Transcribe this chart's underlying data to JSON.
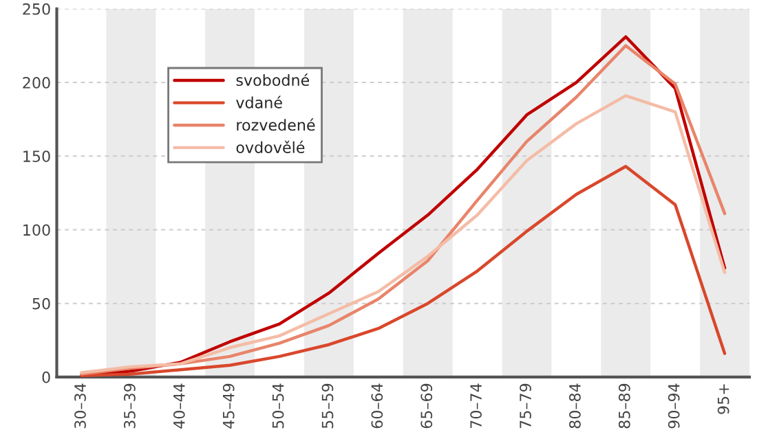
{
  "chart_data": {
    "type": "line",
    "categories": [
      "30–34",
      "35–39",
      "40–44",
      "45–49",
      "50–54",
      "55–59",
      "60–64",
      "65–69",
      "70–74",
      "75–79",
      "80–84",
      "85–89",
      "90–94",
      "95+"
    ],
    "series": [
      {
        "name": "svobodné",
        "color": "#c00000",
        "values": [
          1,
          4,
          10,
          24,
          36,
          57,
          84,
          110,
          141,
          178,
          200,
          231,
          196,
          74
        ]
      },
      {
        "name": "vdané",
        "color": "#d9472b",
        "values": [
          1,
          2,
          5,
          8,
          14,
          22,
          33,
          50,
          72,
          99,
          124,
          143,
          117,
          16
        ]
      },
      {
        "name": "rozvedené",
        "color": "#e8846a",
        "values": [
          2,
          6,
          9,
          14,
          23,
          35,
          53,
          79,
          120,
          160,
          190,
          225,
          199,
          111
        ]
      },
      {
        "name": "ovdovělé",
        "color": "#f4bca6",
        "values": [
          3,
          7,
          9,
          20,
          28,
          43,
          58,
          82,
          110,
          147,
          172,
          191,
          180,
          71
        ]
      }
    ],
    "ylim": [
      0,
      250
    ],
    "yticks": [
      0,
      50,
      100,
      150,
      200,
      250
    ],
    "grid": "y",
    "legend": "top left",
    "bands": [
      {
        "axis": "x",
        "from": "35–39",
        "to": "35–39",
        "color": "#ebebeb"
      },
      {
        "axis": "x",
        "from": "45–49",
        "to": "45–49",
        "color": "#ebebeb"
      },
      {
        "axis": "x",
        "from": "55–59",
        "to": "55–59",
        "color": "#ebebeb"
      },
      {
        "axis": "x",
        "from": "65–69",
        "to": "65–69",
        "color": "#ebebeb"
      },
      {
        "axis": "x",
        "from": "75–79",
        "to": "75–79",
        "color": "#ebebeb"
      },
      {
        "axis": "x",
        "from": "85–89",
        "to": "85–89",
        "color": "#ebebeb"
      },
      {
        "axis": "x",
        "from": "95+",
        "to": "95+",
        "color": "#ebebeb"
      }
    ]
  }
}
